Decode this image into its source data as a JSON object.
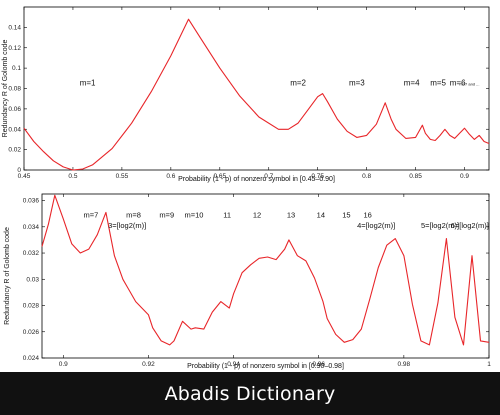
{
  "colors": {
    "curve": "#e8262a",
    "axis": "#000000",
    "footer_bg": "#111111",
    "footer_text": "#ffffff"
  },
  "footer": {
    "text": "Abadis Dictionary"
  },
  "chart_data": [
    {
      "type": "line",
      "xlabel": "Probability (1 - p) of nonzero symbol in [0.45–0.90]",
      "ylabel": "Redundancy R of Golomb code",
      "xlim": [
        0.45,
        0.925
      ],
      "ylim": [
        0.0,
        0.16
      ],
      "xticks": [
        "0.45",
        "0.5",
        "0.55",
        "0.6",
        "0.65",
        "0.7",
        "0.75",
        "0.8",
        "0.85",
        "0.9"
      ],
      "xtick_values": [
        0.45,
        0.5,
        0.55,
        0.6,
        0.65,
        0.7,
        0.75,
        0.8,
        0.85,
        0.9
      ],
      "yticks": [
        "0",
        "0.02",
        "0.04",
        "0.06",
        "0.08",
        "0.1",
        "0.12",
        "0.14"
      ],
      "ytick_values": [
        0,
        0.02,
        0.04,
        0.06,
        0.08,
        0.1,
        0.12,
        0.14
      ],
      "grid": false,
      "annotations": [
        {
          "text": "m=1",
          "x": 0.515,
          "y": 0.083
        },
        {
          "text": "m=2",
          "x": 0.73,
          "y": 0.083
        },
        {
          "text": "m=3",
          "x": 0.79,
          "y": 0.083
        },
        {
          "text": "m=4",
          "x": 0.846,
          "y": 0.083
        },
        {
          "text": "m=5",
          "x": 0.873,
          "y": 0.083
        },
        {
          "text": "m=6",
          "x": 0.893,
          "y": 0.083
        },
        {
          "text": "m=7 and ...",
          "x": 0.905,
          "y": 0.083
        }
      ],
      "series": [
        {
          "x": [
            0.45,
            0.46,
            0.47,
            0.48,
            0.49,
            0.5,
            0.51,
            0.52,
            0.54,
            0.56,
            0.58,
            0.6,
            0.618,
            0.63,
            0.65,
            0.67,
            0.69,
            0.71,
            0.72,
            0.73,
            0.74,
            0.75,
            0.755,
            0.76,
            0.77,
            0.78,
            0.79,
            0.8,
            0.81,
            0.819,
            0.825,
            0.83,
            0.84,
            0.85,
            0.857,
            0.86,
            0.865,
            0.87,
            0.875,
            0.88,
            0.885,
            0.89,
            0.895,
            0.9,
            0.905,
            0.91,
            0.915,
            0.92,
            0.925
          ],
          "y": [
            0.041,
            0.028,
            0.018,
            0.009,
            0.003,
            0.0,
            0.001,
            0.005,
            0.021,
            0.046,
            0.077,
            0.112,
            0.148,
            0.13,
            0.1,
            0.073,
            0.052,
            0.04,
            0.04,
            0.046,
            0.059,
            0.072,
            0.075,
            0.067,
            0.05,
            0.038,
            0.032,
            0.034,
            0.045,
            0.066,
            0.05,
            0.04,
            0.031,
            0.032,
            0.044,
            0.036,
            0.03,
            0.029,
            0.034,
            0.04,
            0.034,
            0.031,
            0.036,
            0.041,
            0.035,
            0.03,
            0.034,
            0.028,
            0.026
          ]
        }
      ]
    },
    {
      "type": "line",
      "xlabel": "Probability (1 - p) of nonzero symbol in [0.90–0.98]",
      "ylabel": "Redundancy R of Golomb code",
      "xlim": [
        0.895,
        1.0
      ],
      "ylim": [
        0.024,
        0.0365
      ],
      "xticks": [
        "0.9",
        "0.92",
        "0.94",
        "0.96",
        "0.98",
        "1"
      ],
      "xtick_values": [
        0.9,
        0.92,
        0.94,
        0.96,
        0.98,
        1.0
      ],
      "yticks": [
        "0.024",
        "0.026",
        "0.028",
        "0.03",
        "0.032",
        "0.034",
        "0.036"
      ],
      "ytick_values": [
        0.024,
        0.026,
        0.028,
        0.03,
        0.032,
        0.034,
        0.036
      ],
      "grid": false,
      "annotations": [
        {
          "text": "m=7",
          "x": 0.9065,
          "y": 0.0347
        },
        {
          "text": "m=8",
          "x": 0.9165,
          "y": 0.0347
        },
        {
          "text": "m=9",
          "x": 0.9243,
          "y": 0.0347
        },
        {
          "text": "m=10",
          "x": 0.9307,
          "y": 0.0347
        },
        {
          "text": "11",
          "x": 0.9385,
          "y": 0.0347
        },
        {
          "text": "12",
          "x": 0.9455,
          "y": 0.0347
        },
        {
          "text": "13",
          "x": 0.9535,
          "y": 0.0347
        },
        {
          "text": "14",
          "x": 0.9605,
          "y": 0.0347
        },
        {
          "text": "15",
          "x": 0.9665,
          "y": 0.0347
        },
        {
          "text": "16",
          "x": 0.9715,
          "y": 0.0347
        },
        {
          "text": "3=[log2(m)]",
          "x": 0.915,
          "y": 0.0339
        },
        {
          "text": "4=[log2(m)]",
          "x": 0.9735,
          "y": 0.0339
        },
        {
          "text": "5=[log2(m)]",
          "x": 0.9885,
          "y": 0.0339
        },
        {
          "text": "6=[log2(m)]",
          "x": 0.9955,
          "y": 0.0339
        }
      ],
      "series": [
        {
          "x": [
            0.895,
            0.8965,
            0.898,
            0.9,
            0.902,
            0.904,
            0.906,
            0.908,
            0.91,
            0.912,
            0.914,
            0.917,
            0.92,
            0.921,
            0.923,
            0.925,
            0.926,
            0.928,
            0.93,
            0.931,
            0.933,
            0.935,
            0.937,
            0.939,
            0.94,
            0.942,
            0.944,
            0.946,
            0.948,
            0.95,
            0.952,
            0.953,
            0.955,
            0.957,
            0.959,
            0.961,
            0.962,
            0.964,
            0.966,
            0.968,
            0.97,
            0.972,
            0.974,
            0.976,
            0.978,
            0.98,
            0.982,
            0.984,
            0.986,
            0.988,
            0.99,
            0.992,
            0.994,
            0.996,
            0.998,
            1.0
          ],
          "y": [
            0.0325,
            0.0342,
            0.0364,
            0.0346,
            0.0327,
            0.032,
            0.0323,
            0.0334,
            0.0351,
            0.0318,
            0.03,
            0.0283,
            0.0273,
            0.0263,
            0.0253,
            0.025,
            0.0253,
            0.0268,
            0.0262,
            0.0263,
            0.0262,
            0.0275,
            0.0283,
            0.0278,
            0.0289,
            0.0305,
            0.0311,
            0.0316,
            0.0317,
            0.0315,
            0.0323,
            0.033,
            0.0318,
            0.0314,
            0.0301,
            0.0283,
            0.027,
            0.0258,
            0.0252,
            0.0254,
            0.0262,
            0.0285,
            0.0309,
            0.0326,
            0.0331,
            0.0318,
            0.0281,
            0.0253,
            0.025,
            0.0282,
            0.0331,
            0.0271,
            0.025,
            0.0318,
            0.0253,
            0.0252
          ]
        }
      ]
    }
  ]
}
